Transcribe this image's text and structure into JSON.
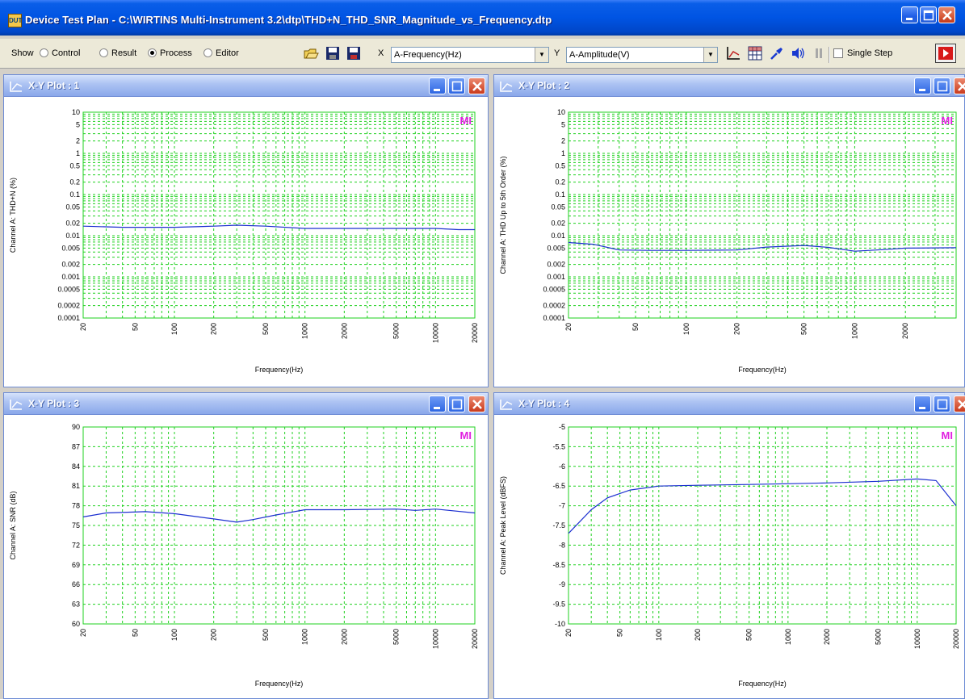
{
  "window": {
    "icon_label": "DUT",
    "title": "Device Test Plan - C:\\WIRTINS Multi-Instrument 3.2\\dtp\\THD+N_THD_SNR_Magnitude_vs_Frequency.dtp"
  },
  "toolbar": {
    "show_label": "Show",
    "radio_control": "Control",
    "radio_result": "Result",
    "radio_process": "Process",
    "radio_editor": "Editor",
    "selected_radio": "Process",
    "x_label": "X",
    "x_combo_value": "A-Frequency(Hz)",
    "y_label": "Y",
    "y_combo_value": "A-Amplitude(V)",
    "single_step_label": "Single Step",
    "single_step_checked": false
  },
  "plots": [
    {
      "title": "X-Y Plot : 1",
      "watermark": "MI"
    },
    {
      "title": "X-Y Plot : 2",
      "watermark": "MI"
    },
    {
      "title": "X-Y Plot : 3",
      "watermark": "MI"
    },
    {
      "title": "X-Y Plot : 4",
      "watermark": "MI"
    }
  ],
  "colors": {
    "grid": "#1fd11f",
    "trace": "#1c2fd0",
    "watermark": "#e020e0",
    "titlebar": "#0054e3"
  },
  "chart_data": [
    {
      "type": "line",
      "xlabel": "Frequency(Hz)",
      "ylabel": "Channel A: THD+N (%)",
      "x_scale": "log",
      "y_scale": "log",
      "xlim": [
        20,
        20000
      ],
      "ylim": [
        0.0001,
        10
      ],
      "x_ticks": [
        "20",
        "50",
        "100",
        "200",
        "500",
        "1000",
        "2000",
        "5000",
        "10000",
        "20000"
      ],
      "y_ticks": [
        "10",
        "5",
        "2",
        "1",
        "0.5",
        "0.2",
        "0.1",
        "0.05",
        "0.02",
        "0.01",
        "0.005",
        "0.002",
        "0.001",
        "0.0005",
        "0.0002",
        "0.0001"
      ],
      "grid": true,
      "series": [
        {
          "x": [
            20,
            40,
            100,
            200,
            300,
            500,
            1000,
            2000,
            5000,
            10000,
            15000,
            20000
          ],
          "y": [
            0.017,
            0.016,
            0.016,
            0.017,
            0.018,
            0.017,
            0.015,
            0.015,
            0.015,
            0.015,
            0.014,
            0.014
          ]
        }
      ]
    },
    {
      "type": "line",
      "xlabel": "Frequency(Hz)",
      "ylabel": "Channel A: THD Up to 5th Order (%)",
      "x_scale": "log",
      "y_scale": "log",
      "xlim": [
        20,
        4000
      ],
      "ylim": [
        0.0001,
        10
      ],
      "x_ticks": [
        "20",
        "50",
        "100",
        "200",
        "500",
        "1000",
        "2000"
      ],
      "y_ticks": [
        "10",
        "5",
        "2",
        "1",
        "0.5",
        "0.2",
        "0.1",
        "0.05",
        "0.02",
        "0.01",
        "0.005",
        "0.002",
        "0.001",
        "0.0005",
        "0.0002",
        "0.0001"
      ],
      "grid": true,
      "series": [
        {
          "x": [
            20,
            28,
            40,
            60,
            100,
            200,
            300,
            500,
            700,
            1000,
            1500,
            2000,
            4000
          ],
          "y": [
            0.0068,
            0.0062,
            0.0045,
            0.0044,
            0.0044,
            0.0045,
            0.0053,
            0.0058,
            0.0052,
            0.0042,
            0.0046,
            0.005,
            0.0051
          ]
        }
      ]
    },
    {
      "type": "line",
      "xlabel": "Frequency(Hz)",
      "ylabel": "Channel A: SNR (dB)",
      "x_scale": "log",
      "y_scale": "linear",
      "xlim": [
        20,
        20000
      ],
      "ylim": [
        60,
        90
      ],
      "x_ticks": [
        "20",
        "50",
        "100",
        "200",
        "500",
        "1000",
        "2000",
        "5000",
        "10000",
        "20000"
      ],
      "y_ticks": [
        "90",
        "87",
        "84",
        "81",
        "78",
        "75",
        "72",
        "69",
        "66",
        "63",
        "60"
      ],
      "grid": true,
      "series": [
        {
          "x": [
            20,
            30,
            60,
            100,
            200,
            300,
            400,
            600,
            1000,
            2000,
            5000,
            7000,
            10000,
            20000
          ],
          "y": [
            76.3,
            76.9,
            77.1,
            76.8,
            76.0,
            75.5,
            75.9,
            76.6,
            77.4,
            77.4,
            77.5,
            77.3,
            77.5,
            76.9
          ]
        }
      ]
    },
    {
      "type": "line",
      "xlabel": "Frequency(Hz)",
      "ylabel": "Channel A: Peak Level (dBFS)",
      "x_scale": "log",
      "y_scale": "linear",
      "xlim": [
        20,
        20000
      ],
      "ylim": [
        -10,
        -5
      ],
      "x_ticks": [
        "20",
        "50",
        "100",
        "200",
        "500",
        "1000",
        "2000",
        "5000",
        "10000",
        "20000"
      ],
      "y_ticks": [
        "-5",
        "-5.5",
        "-6",
        "-6.5",
        "-7",
        "-7.5",
        "-8",
        "-8.5",
        "-9",
        "-9.5",
        "-10"
      ],
      "grid": true,
      "series": [
        {
          "x": [
            20,
            30,
            40,
            60,
            100,
            200,
            500,
            1000,
            2000,
            5000,
            10000,
            14000,
            20000
          ],
          "y": [
            -7.7,
            -7.1,
            -6.8,
            -6.6,
            -6.5,
            -6.48,
            -6.46,
            -6.44,
            -6.42,
            -6.38,
            -6.32,
            -6.36,
            -7.0
          ]
        }
      ]
    }
  ]
}
